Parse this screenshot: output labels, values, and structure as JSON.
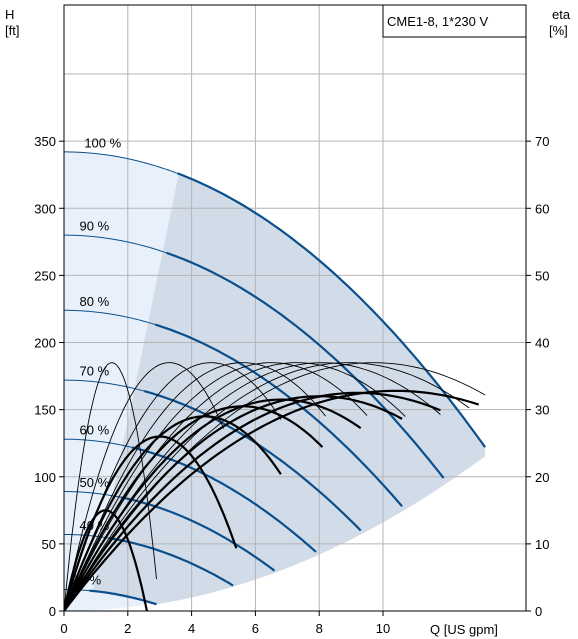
{
  "chart_data": {
    "type": "line",
    "title": "CME1-8, 1*230 V",
    "xlabel": "Q [US gpm]",
    "ylabel_left": [
      "H",
      "[ft]"
    ],
    "ylabel_right": [
      "eta",
      "[%]"
    ],
    "xlim": [
      0,
      14
    ],
    "ylim_left": [
      0,
      450
    ],
    "ylim_right": [
      0,
      90
    ],
    "x_ticks": [
      "0",
      "2",
      "4",
      "6",
      "8",
      "10"
    ],
    "x_tick_values": [
      0,
      2,
      4,
      6,
      8,
      10
    ],
    "y_left_ticks": [
      "0",
      "50",
      "100",
      "150",
      "200",
      "250",
      "300",
      "350"
    ],
    "y_left_tick_values": [
      0,
      50,
      100,
      150,
      200,
      250,
      300,
      350
    ],
    "y_right_ticks": [
      "0",
      "10",
      "20",
      "30",
      "40",
      "50",
      "60",
      "70"
    ],
    "y_right_tick_values": [
      0,
      10,
      20,
      30,
      40,
      50,
      60,
      70
    ],
    "grid": true,
    "colors": {
      "head_curve": "#0a4f8c",
      "operating_area": "#d2dce8",
      "extended_area": "#e8f1fb",
      "efficiency_curve": "#000000",
      "grid": "#b4b4b4"
    },
    "head_curves": [
      {
        "name": "100 %",
        "shutoff": 342,
        "qmax": 13.2,
        "hend": 122
      },
      {
        "name": "90 %",
        "shutoff": 280,
        "qmax": 11.9,
        "hend": 99
      },
      {
        "name": "80 %",
        "shutoff": 224,
        "qmax": 10.6,
        "hend": 78
      },
      {
        "name": "70 %",
        "shutoff": 172,
        "qmax": 9.3,
        "hend": 60
      },
      {
        "name": "60 %",
        "shutoff": 128,
        "qmax": 7.9,
        "hend": 44
      },
      {
        "name": "50 %",
        "shutoff": 89,
        "qmax": 6.6,
        "hend": 30
      },
      {
        "name": "40 %",
        "shutoff": 57,
        "qmax": 5.3,
        "hend": 19
      },
      {
        "name": "31 %",
        "shutoff": 16,
        "qmax": 2.9,
        "hend": 5
      }
    ],
    "efficiency_curves": [
      {
        "qmax": 1.5,
        "peak": 37,
        "qend": 2.9,
        "bold": false
      },
      {
        "qmax": 3.3,
        "peak": 37,
        "qend": 5.0,
        "bold": false
      },
      {
        "qmax": 4.6,
        "peak": 37,
        "qend": 6.8,
        "bold": false
      },
      {
        "qmax": 5.6,
        "peak": 37,
        "qend": 8.2,
        "bold": false
      },
      {
        "qmax": 6.5,
        "peak": 37,
        "qend": 9.5,
        "bold": false
      },
      {
        "qmax": 7.3,
        "peak": 37,
        "qend": 10.7,
        "bold": false
      },
      {
        "qmax": 8.1,
        "peak": 37,
        "qend": 11.8,
        "bold": false
      },
      {
        "qmax": 8.9,
        "peak": 37,
        "qend": 12.7,
        "bold": false
      },
      {
        "qmax": 9.7,
        "peak": 37,
        "qend": 13.2,
        "bold": false
      },
      {
        "qmax": 1.3,
        "peak": 15,
        "qend": 2.9,
        "bold": true
      },
      {
        "qmax": 3.0,
        "peak": 26,
        "qend": 5.4,
        "bold": true
      },
      {
        "qmax": 4.4,
        "peak": 29,
        "qend": 6.8,
        "bold": true
      },
      {
        "qmax": 5.6,
        "peak": 30.5,
        "qend": 8.1,
        "bold": true
      },
      {
        "qmax": 6.8,
        "peak": 31.5,
        "qend": 9.3,
        "bold": true
      },
      {
        "qmax": 8.0,
        "peak": 32,
        "qend": 10.6,
        "bold": true
      },
      {
        "qmax": 9.2,
        "peak": 32.5,
        "qend": 11.8,
        "bold": true
      },
      {
        "qmax": 10.4,
        "peak": 32.8,
        "qend": 13.0,
        "bold": true
      }
    ]
  }
}
